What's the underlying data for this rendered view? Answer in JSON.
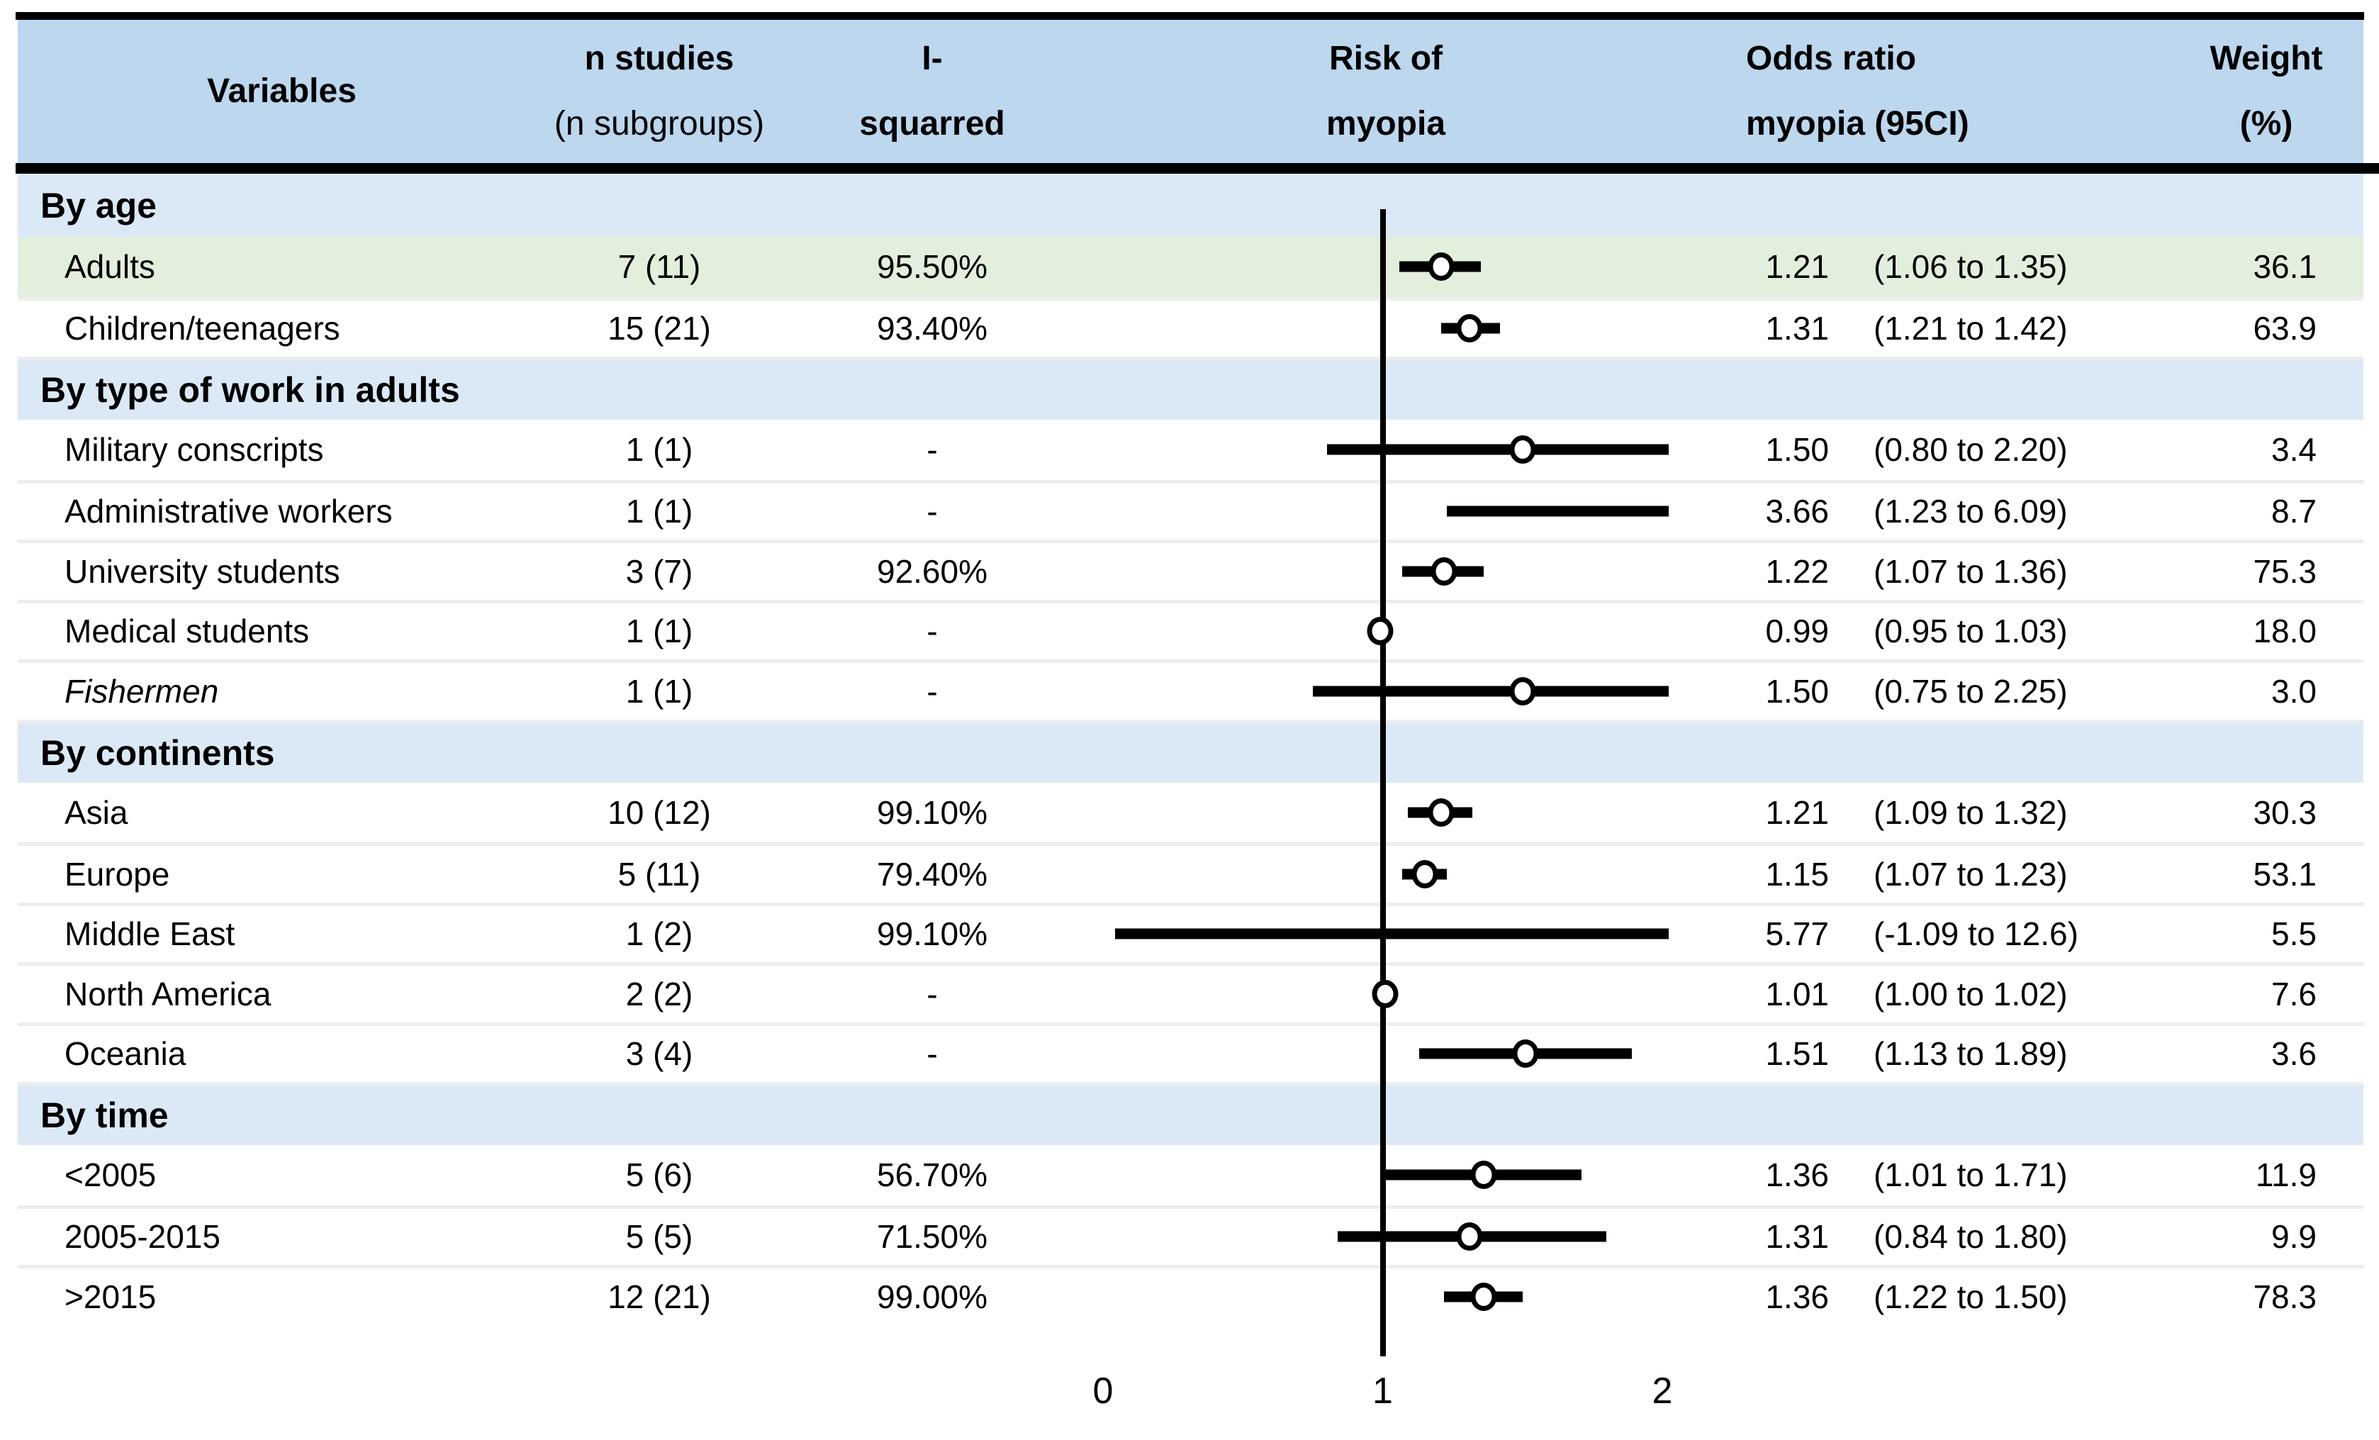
{
  "header": {
    "col_variables": "Variables",
    "col_n_studies_line1": "n studies",
    "col_n_studies_line2": "(n subgroups)",
    "col_i2_line1": "I-",
    "col_i2_line2": "squarred",
    "col_risk_line1": "Risk of",
    "col_risk_line2": "myopia",
    "col_or_line1": "Odds ratio",
    "col_or_line2": "myopia (95CI)",
    "col_weight_line1": "Weight",
    "col_weight_line2": "(%)"
  },
  "colors": {
    "header_bg": "#bcd7ee",
    "section_bg": "#dbe9f6",
    "highlight_row_bg": "#e2efdc",
    "row_separator": "#ededed",
    "rule": "#000000"
  },
  "chart_data": {
    "type": "forest",
    "x_axis": {
      "min": 0,
      "max": 2,
      "ticks": [
        0,
        1,
        2
      ],
      "reference_line": 1
    },
    "columns": [
      "Variables",
      "n studies (n subgroups)",
      "I-squarred",
      "Risk of myopia",
      "Odds ratio myopia (95CI)",
      "Weight (%)"
    ],
    "rows": [
      {
        "type": "section",
        "label": "By age"
      },
      {
        "type": "data",
        "label": "Adults",
        "highlight": true,
        "n_studies": "7 (11)",
        "i_squared": "95.50%",
        "or": 1.21,
        "ci_low": 1.06,
        "ci_high": 1.35,
        "or_text": "1.21",
        "ci_text": "(1.06 to 1.35)",
        "weight": "36.1"
      },
      {
        "type": "data",
        "label": "Children/teenagers",
        "n_studies": "15 (21)",
        "i_squared": "93.40%",
        "or": 1.31,
        "ci_low": 1.21,
        "ci_high": 1.42,
        "or_text": "1.31",
        "ci_text": "(1.21 to 1.42)",
        "weight": "63.9"
      },
      {
        "type": "section",
        "label": "By type of work in adults"
      },
      {
        "type": "data",
        "label": "Military conscripts",
        "n_studies": "1 (1)",
        "i_squared": "-",
        "or": 1.5,
        "ci_low": 0.8,
        "ci_high": 2.2,
        "or_text": "1.50",
        "ci_text": "(0.80 to 2.20)",
        "weight": "3.4"
      },
      {
        "type": "data",
        "label": "Administrative workers",
        "n_studies": "1 (1)",
        "i_squared": "-",
        "or": 3.66,
        "ci_low": 1.23,
        "ci_high": 6.09,
        "or_text": "3.66",
        "ci_text": "(1.23 to 6.09)",
        "weight": "8.7"
      },
      {
        "type": "data",
        "label": "University students",
        "n_studies": "3 (7)",
        "i_squared": "92.60%",
        "or": 1.22,
        "ci_low": 1.07,
        "ci_high": 1.36,
        "or_text": "1.22",
        "ci_text": "(1.07 to 1.36)",
        "weight": "75.3"
      },
      {
        "type": "data",
        "label": "Medical students",
        "n_studies": "1 (1)",
        "i_squared": "-",
        "or": 0.99,
        "ci_low": 0.95,
        "ci_high": 1.03,
        "or_text": "0.99",
        "ci_text": "(0.95 to 1.03)",
        "weight": "18.0"
      },
      {
        "type": "data",
        "label": "Fishermen",
        "italic": true,
        "n_studies": "1 (1)",
        "i_squared": "-",
        "or": 1.5,
        "ci_low": 0.75,
        "ci_high": 2.25,
        "or_text": "1.50",
        "ci_text": "(0.75 to 2.25)",
        "weight": "3.0"
      },
      {
        "type": "section",
        "label": "By continents"
      },
      {
        "type": "data",
        "label": "Asia",
        "n_studies": "10 (12)",
        "i_squared": "99.10%",
        "or": 1.21,
        "ci_low": 1.09,
        "ci_high": 1.32,
        "or_text": "1.21",
        "ci_text": "(1.09 to 1.32)",
        "weight": "30.3"
      },
      {
        "type": "data",
        "label": "Europe",
        "n_studies": "5 (11)",
        "i_squared": "79.40%",
        "or": 1.15,
        "ci_low": 1.07,
        "ci_high": 1.23,
        "or_text": "1.15",
        "ci_text": "(1.07 to 1.23)",
        "weight": "53.1"
      },
      {
        "type": "data",
        "label": "Middle East",
        "n_studies": "1 (2)",
        "i_squared": "99.10%",
        "or": 5.77,
        "ci_low": -1.09,
        "ci_high": 12.6,
        "or_text": "5.77",
        "ci_text": "(-1.09 to 12.6)",
        "weight": "5.5"
      },
      {
        "type": "data",
        "label": "North America",
        "n_studies": "2 (2)",
        "i_squared": "-",
        "or": 1.01,
        "ci_low": 1.0,
        "ci_high": 1.02,
        "or_text": "1.01",
        "ci_text": "(1.00 to 1.02)",
        "weight": "7.6"
      },
      {
        "type": "data",
        "label": "Oceania",
        "n_studies": "3 (4)",
        "i_squared": "-",
        "or": 1.51,
        "ci_low": 1.13,
        "ci_high": 1.89,
        "or_text": "1.51",
        "ci_text": "(1.13 to 1.89)",
        "weight": "3.6"
      },
      {
        "type": "section",
        "label": "By time"
      },
      {
        "type": "data",
        "label": "<2005",
        "n_studies": "5 (6)",
        "i_squared": "56.70%",
        "or": 1.36,
        "ci_low": 1.01,
        "ci_high": 1.71,
        "or_text": "1.36",
        "ci_text": "(1.01 to 1.71)",
        "weight": "11.9"
      },
      {
        "type": "data",
        "label": "2005-2015",
        "n_studies": "5 (5)",
        "i_squared": "71.50%",
        "or": 1.31,
        "ci_low": 0.84,
        "ci_high": 1.8,
        "or_text": "1.31",
        "ci_text": "(0.84 to 1.80)",
        "weight": "9.9"
      },
      {
        "type": "data",
        "label": ">2015",
        "n_studies": "12 (21)",
        "i_squared": "99.00%",
        "or": 1.36,
        "ci_low": 1.22,
        "ci_high": 1.5,
        "or_text": "1.36",
        "ci_text": "(1.22 to 1.50)",
        "weight": "78.3"
      }
    ]
  }
}
